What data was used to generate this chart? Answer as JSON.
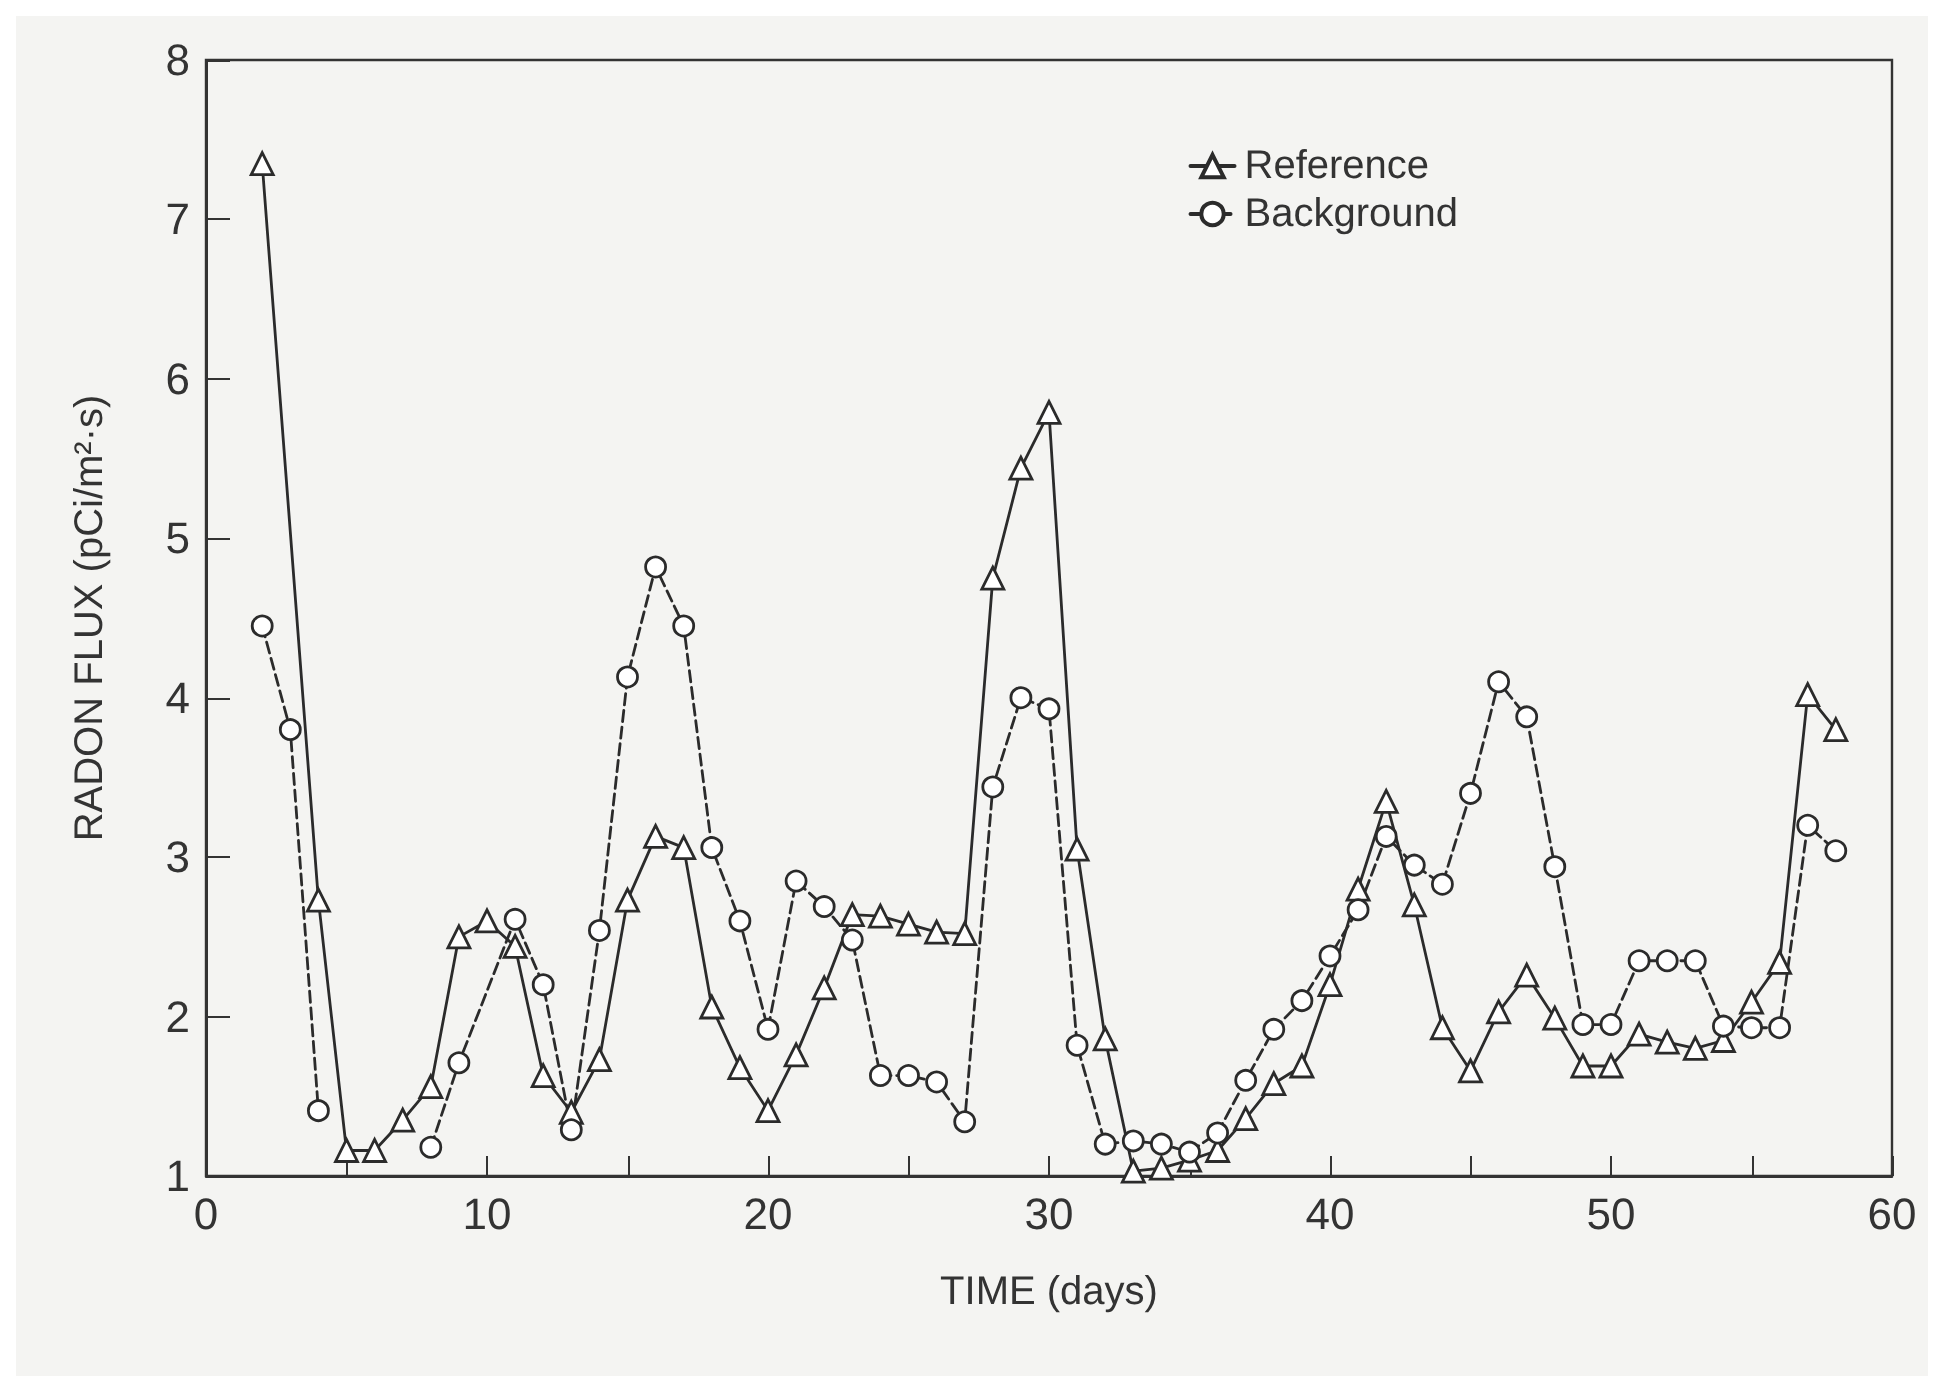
{
  "chart_data": {
    "type": "line",
    "xlabel": "TIME (days)",
    "ylabel": "RADON FLUX (pCi/m²·s)",
    "xlim": [
      0,
      60
    ],
    "xticks": [
      0,
      {
        "value": 5,
        "label": null
      },
      10,
      {
        "value": 15,
        "label": null
      },
      20,
      {
        "value": 25,
        "label": null
      },
      30,
      {
        "value": 35,
        "label": null
      },
      40,
      {
        "value": 45,
        "label": null
      },
      50,
      {
        "value": 55,
        "label": null
      },
      60
    ],
    "ylim": [
      1,
      8
    ],
    "yticks": [
      1,
      2,
      3,
      4,
      5,
      6,
      7,
      8
    ],
    "grid": false,
    "legend": "top right",
    "series": [
      {
        "name": "Reference",
        "color": "#2b2b2b",
        "marker": "triangle",
        "line_style": "solid",
        "x": [
          2,
          4,
          5,
          6,
          7,
          8,
          9,
          10,
          11,
          12,
          13,
          14,
          15,
          16,
          17,
          18,
          19,
          20,
          21,
          22,
          23,
          24,
          25,
          26,
          27,
          28,
          29,
          30,
          31,
          32,
          33,
          34,
          35,
          36,
          37,
          38,
          39,
          40,
          41,
          42,
          43,
          44,
          45,
          46,
          47,
          48,
          49,
          50,
          51,
          52,
          53,
          54,
          55,
          56,
          57,
          58
        ],
        "values": [
          7.35,
          2.73,
          1.16,
          1.16,
          1.35,
          1.56,
          2.5,
          2.6,
          2.44,
          1.63,
          1.4,
          1.73,
          2.73,
          3.13,
          3.06,
          2.06,
          1.68,
          1.41,
          1.76,
          2.18,
          2.64,
          2.63,
          2.58,
          2.53,
          2.52,
          4.75,
          5.44,
          5.79,
          3.05,
          1.86,
          1.03,
          1.05,
          1.1,
          1.16,
          1.36,
          1.58,
          1.69,
          2.2,
          2.8,
          3.35,
          2.7,
          1.93,
          1.66,
          2.03,
          2.26,
          1.99,
          1.69,
          1.69,
          1.89,
          1.84,
          1.8,
          1.85,
          2.09,
          2.34,
          4.02,
          3.8
        ]
      },
      {
        "name": "Background",
        "color": "#2b2b2b",
        "marker": "circle",
        "line_style": "dashed",
        "x": [
          2,
          3,
          4,
          5,
          6,
          7,
          8,
          9,
          11,
          12,
          13,
          14,
          15,
          16,
          17,
          18,
          19,
          20,
          21,
          22,
          23,
          24,
          25,
          26,
          27,
          28,
          29,
          30,
          31,
          32,
          33,
          34,
          35,
          36,
          37,
          38,
          39,
          40,
          41,
          42,
          43,
          44,
          45,
          46,
          47,
          48,
          49,
          50,
          51,
          52,
          53,
          54,
          55,
          56,
          57,
          58
        ],
        "values": [
          4.45,
          3.8,
          1.41,
          null,
          null,
          null,
          1.18,
          1.71,
          2.61,
          2.2,
          1.29,
          2.54,
          4.13,
          4.82,
          4.45,
          3.06,
          2.6,
          1.92,
          2.85,
          2.69,
          2.48,
          1.63,
          1.63,
          1.59,
          1.34,
          3.44,
          4.0,
          3.93,
          1.82,
          1.2,
          1.22,
          1.2,
          1.15,
          1.27,
          1.6,
          1.92,
          2.1,
          2.38,
          2.67,
          3.13,
          2.95,
          2.83,
          3.4,
          4.1,
          3.88,
          2.94,
          1.95,
          1.95,
          2.35,
          2.35,
          2.35,
          1.94,
          1.93,
          1.93,
          3.2,
          3.04
        ]
      }
    ]
  }
}
